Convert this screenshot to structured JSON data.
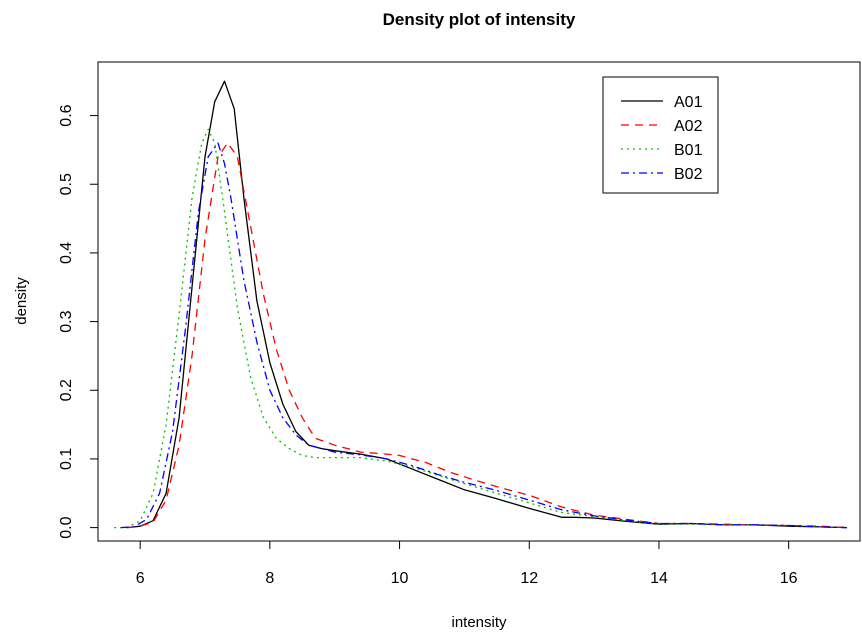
{
  "chart_data": {
    "type": "line",
    "title": "Density plot of intensity",
    "xlabel": "intensity",
    "ylabel": "density",
    "xlim": [
      5.35,
      17.1
    ],
    "ylim": [
      -0.0195,
      0.678
    ],
    "xticks": [
      6,
      8,
      10,
      12,
      14,
      16
    ],
    "yticks": [
      0.0,
      0.1,
      0.2,
      0.3,
      0.4,
      0.5,
      0.6
    ],
    "ytick_labels": [
      "0.0",
      "0.1",
      "0.2",
      "0.3",
      "0.4",
      "0.5",
      "0.6"
    ],
    "grid": false,
    "legend_position": "top-right",
    "series": [
      {
        "name": "A01",
        "color": "#000000",
        "dash": "solid",
        "x": [
          5.8,
          6.0,
          6.2,
          6.4,
          6.6,
          6.8,
          7.0,
          7.15,
          7.3,
          7.45,
          7.6,
          7.8,
          8.0,
          8.2,
          8.4,
          8.6,
          8.8,
          9.0,
          9.4,
          9.8,
          10.2,
          10.6,
          11.0,
          11.5,
          12.0,
          12.5,
          12.7,
          13.0,
          13.5,
          14.0,
          14.5,
          15.0,
          15.5,
          16.0,
          16.5,
          16.9
        ],
        "y": [
          0.0,
          0.002,
          0.01,
          0.05,
          0.16,
          0.35,
          0.54,
          0.62,
          0.65,
          0.61,
          0.48,
          0.33,
          0.24,
          0.18,
          0.14,
          0.12,
          0.115,
          0.112,
          0.107,
          0.1,
          0.085,
          0.07,
          0.055,
          0.042,
          0.028,
          0.015,
          0.015,
          0.014,
          0.009,
          0.005,
          0.006,
          0.004,
          0.004,
          0.002,
          0.001,
          0.0
        ]
      },
      {
        "name": "A02",
        "color": "#ff0000",
        "dash": "8,6",
        "x": [
          5.8,
          6.0,
          6.2,
          6.4,
          6.6,
          6.8,
          7.0,
          7.2,
          7.35,
          7.5,
          7.7,
          7.9,
          8.1,
          8.3,
          8.5,
          8.7,
          9.0,
          9.4,
          9.8,
          10.0,
          10.4,
          10.8,
          11.2,
          11.6,
          12.0,
          12.5,
          13.0,
          13.5,
          14.0,
          14.5,
          15.0,
          15.5,
          16.0,
          16.5,
          16.9
        ],
        "y": [
          0.0,
          0.002,
          0.008,
          0.04,
          0.12,
          0.25,
          0.42,
          0.54,
          0.56,
          0.54,
          0.44,
          0.34,
          0.26,
          0.2,
          0.16,
          0.13,
          0.12,
          0.11,
          0.107,
          0.105,
          0.095,
          0.08,
          0.068,
          0.057,
          0.047,
          0.03,
          0.018,
          0.012,
          0.006,
          0.006,
          0.005,
          0.004,
          0.003,
          0.002,
          0.0
        ]
      },
      {
        "name": "B01",
        "color": "#00c000",
        "dash": "2,4",
        "x": [
          5.6,
          5.8,
          6.0,
          6.2,
          6.4,
          6.6,
          6.8,
          6.95,
          7.05,
          7.15,
          7.3,
          7.5,
          7.7,
          7.9,
          8.1,
          8.3,
          8.5,
          8.7,
          9.0,
          9.4,
          9.8,
          10.2,
          10.6,
          11.0,
          11.5,
          12.0,
          12.5,
          13.0,
          13.5,
          14.0,
          14.5,
          15.0,
          15.5,
          16.0,
          16.5,
          16.9
        ],
        "y": [
          0.0,
          0.0,
          0.01,
          0.05,
          0.15,
          0.31,
          0.48,
          0.56,
          0.58,
          0.56,
          0.46,
          0.32,
          0.22,
          0.16,
          0.13,
          0.115,
          0.105,
          0.102,
          0.102,
          0.102,
          0.097,
          0.088,
          0.076,
          0.064,
          0.05,
          0.036,
          0.022,
          0.016,
          0.01,
          0.005,
          0.005,
          0.004,
          0.004,
          0.003,
          0.001,
          0.0
        ]
      },
      {
        "name": "B02",
        "color": "#0000ff",
        "dash": "8,4,2,4",
        "x": [
          5.7,
          5.9,
          6.1,
          6.3,
          6.5,
          6.7,
          6.9,
          7.05,
          7.2,
          7.3,
          7.4,
          7.6,
          7.8,
          8.0,
          8.2,
          8.4,
          8.6,
          8.8,
          9.0,
          9.4,
          9.8,
          10.2,
          10.6,
          11.0,
          11.5,
          12.0,
          12.5,
          13.0,
          13.5,
          14.0,
          14.5,
          15.0,
          15.5,
          16.0,
          16.5,
          16.9
        ],
        "y": [
          0.0,
          0.001,
          0.012,
          0.05,
          0.14,
          0.29,
          0.46,
          0.54,
          0.56,
          0.53,
          0.48,
          0.36,
          0.27,
          0.2,
          0.16,
          0.135,
          0.12,
          0.115,
          0.11,
          0.106,
          0.1,
          0.09,
          0.077,
          0.066,
          0.054,
          0.04,
          0.026,
          0.017,
          0.011,
          0.006,
          0.006,
          0.004,
          0.004,
          0.003,
          0.001,
          0.0
        ]
      }
    ]
  }
}
